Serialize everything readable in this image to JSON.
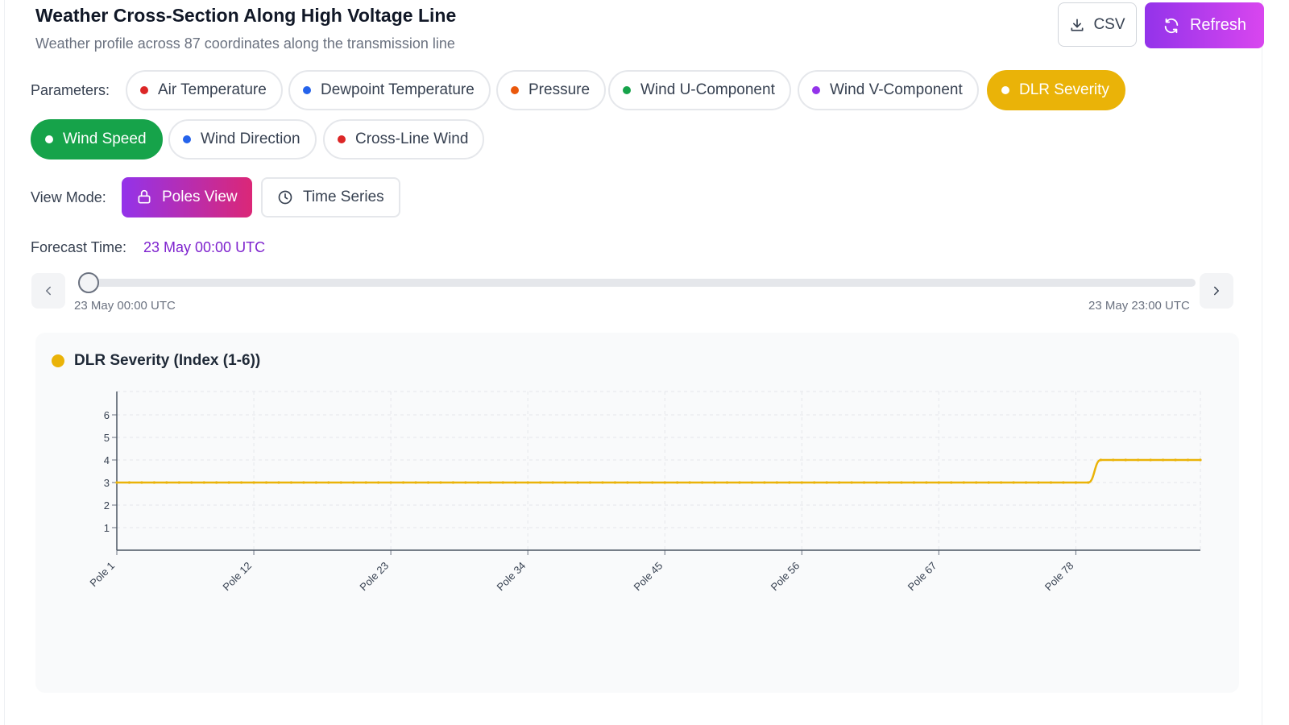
{
  "header": {
    "title": "Weather Cross-Section Along High Voltage Line",
    "subtitle": "Weather profile across 87 coordinates along the transmission line",
    "csv_label": "CSV",
    "csv_icon": "download-icon",
    "refresh_label": "Refresh",
    "refresh_icon": "refresh-icon"
  },
  "parameters": {
    "label": "Parameters:",
    "items": [
      {
        "label": "Air Temperature",
        "color": "#dc2626",
        "active": false
      },
      {
        "label": "Dewpoint Temperature",
        "color": "#2563eb",
        "active": false
      },
      {
        "label": "Pressure",
        "color": "#ea580c",
        "active": false
      },
      {
        "label": "Wind U-Component",
        "color": "#16a34a",
        "active": false
      },
      {
        "label": "Wind V-Component",
        "color": "#9333ea",
        "active": false
      },
      {
        "label": "DLR Severity",
        "color": "#eab308",
        "active": true
      },
      {
        "label": "Wind Speed",
        "color": "#16a34a",
        "active": true
      },
      {
        "label": "Wind Direction",
        "color": "#2563eb",
        "active": false
      },
      {
        "label": "Cross-Line Wind",
        "color": "#dc2626",
        "active": false
      }
    ]
  },
  "view_mode": {
    "label": "View Mode:",
    "poles_label": "Poles View",
    "poles_icon": "pole-icon",
    "time_label": "Time Series",
    "time_icon": "clock-icon",
    "selected": "Poles View"
  },
  "forecast": {
    "label": "Forecast Time:",
    "value": "23 May 00:00 UTC",
    "slider_start": "23 May 00:00 UTC",
    "slider_end": "23 May 23:00 UTC",
    "slider_position": 0,
    "prev_icon": "chevron-left-icon",
    "next_icon": "chevron-right-icon"
  },
  "chart_data": {
    "type": "line",
    "title": "DLR Severity (Index (1-6))",
    "color": "#eab308",
    "xlabel": "",
    "ylabel": "",
    "ylim": [
      0,
      7
    ],
    "yticks": [
      1,
      2,
      3,
      4,
      5,
      6
    ],
    "x_tick_labels": [
      "Pole 1",
      "Pole 12",
      "Pole 23",
      "Pole 34",
      "Pole 45",
      "Pole 56",
      "Pole 67",
      "Pole 78"
    ],
    "x_tick_poles": [
      1,
      12,
      23,
      34,
      45,
      56,
      67,
      78
    ],
    "grid": true,
    "series": [
      {
        "values": [
          3,
          3,
          3,
          3,
          3,
          3,
          3,
          3,
          3,
          3,
          3,
          3,
          3,
          3,
          3,
          3,
          3,
          3,
          3,
          3,
          3,
          3,
          3,
          3,
          3,
          3,
          3,
          3,
          3,
          3,
          3,
          3,
          3,
          3,
          3,
          3,
          3,
          3,
          3,
          3,
          3,
          3,
          3,
          3,
          3,
          3,
          3,
          3,
          3,
          3,
          3,
          3,
          3,
          3,
          3,
          3,
          3,
          3,
          3,
          3,
          3,
          3,
          3,
          3,
          3,
          3,
          3,
          3,
          3,
          3,
          3,
          3,
          3,
          3,
          3,
          3,
          3,
          3,
          3,
          4,
          4,
          4,
          4,
          4,
          4,
          4,
          4,
          4
        ]
      }
    ]
  }
}
